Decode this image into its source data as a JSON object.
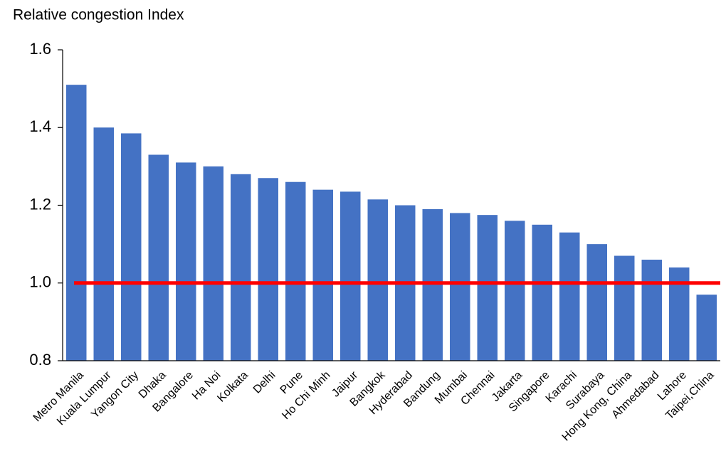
{
  "chart_data": {
    "type": "bar",
    "title": "Relative congestion Index",
    "categories": [
      "Metro Manila",
      "Kuala Lumpur",
      "Yangon City",
      "Dhaka",
      "Bangalore",
      "Ha Noi",
      "Kolkata",
      "Delhi",
      "Pune",
      "Ho Chi Minh",
      "Jaipur",
      "Bangkok",
      "Hyderabad",
      "Bandung",
      "Mumbai",
      "Chennai",
      "Jakarta",
      "Singapore",
      "Karachi",
      "Surabaya",
      "Hong Kong, China",
      "Ahmedabad",
      "Lahore",
      "Taipei,China"
    ],
    "values": [
      1.51,
      1.4,
      1.385,
      1.33,
      1.31,
      1.3,
      1.28,
      1.27,
      1.26,
      1.24,
      1.235,
      1.215,
      1.2,
      1.19,
      1.18,
      1.175,
      1.16,
      1.15,
      1.13,
      1.1,
      1.07,
      1.06,
      1.04,
      0.97
    ],
    "color": "#4472c4",
    "ylim": [
      0.8,
      1.6
    ],
    "yticks": [
      0.8,
      {
        "value": 1,
        "label": "1.0"
      },
      1.2,
      1.4,
      1.6
    ],
    "reference_line": {
      "value": 1,
      "color": "#ff0000"
    }
  }
}
